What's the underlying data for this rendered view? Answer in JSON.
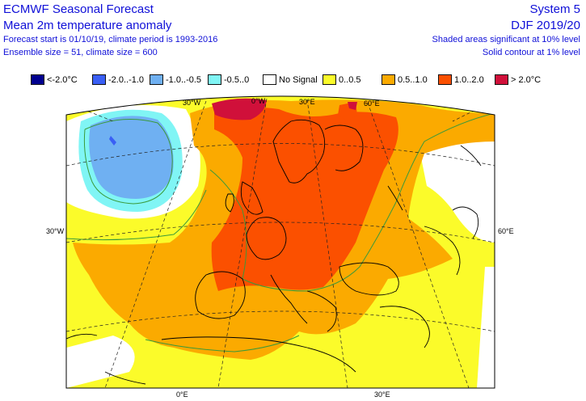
{
  "header": {
    "title_left": "ECMWF Seasonal Forecast",
    "subtitle_left": "Mean 2m temperature anomaly",
    "line3_left": "Forecast start is 01/10/19, climate period is 1993-2016",
    "line4_left": "Ensemble size = 51, climate size = 600",
    "title_right": "System 5",
    "subtitle_right": "DJF 2019/20",
    "line3_right": "Shaded areas significant at 10% level",
    "line4_right": "Solid contour at 1% level"
  },
  "legend": [
    {
      "label": "<-2.0°C",
      "color": "#00008f"
    },
    {
      "label": "-2.0..-1.0",
      "color": "#3a5ff5"
    },
    {
      "label": "-1.0..-0.5",
      "color": "#6fb0f2"
    },
    {
      "label": "-0.5..0",
      "color": "#80f5f5"
    },
    {
      "label": "No Signal",
      "color": "#ffffff"
    },
    {
      "label": "0..0.5",
      "color": "#fbfb2a"
    },
    {
      "label": "0.5..1.0",
      "color": "#fbaa00"
    },
    {
      "label": "1.0..2.0",
      "color": "#fb5000"
    },
    {
      "label": "> 2.0°C",
      "color": "#d0103a"
    }
  ],
  "map_labels": {
    "top_30w": "30°W",
    "top_0w": "0°W",
    "top_30e": "30°E",
    "top_60e": "60°E",
    "left_30w": "30°W",
    "right_60e": "60°E",
    "bottom_0e": "0°E",
    "bottom_30e": "30°E"
  },
  "colors": {
    "text": "#1010d8",
    "coast": "#000000",
    "contour": "#3a9a3a"
  }
}
